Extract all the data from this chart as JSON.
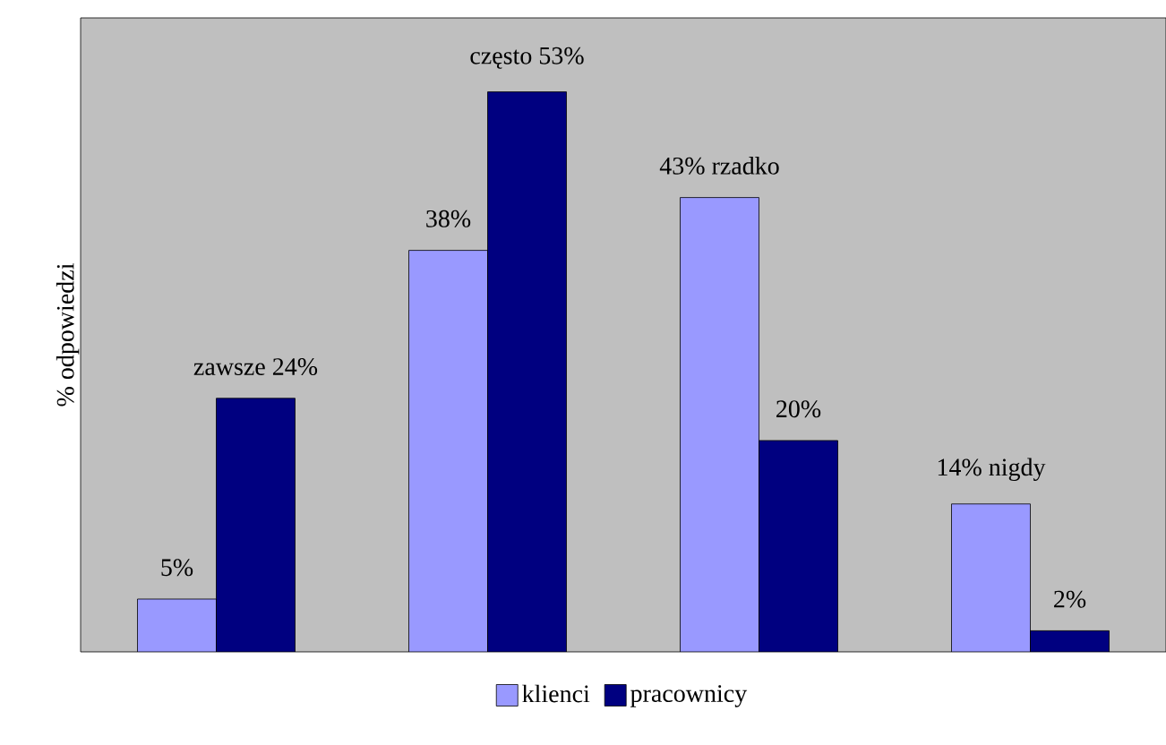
{
  "chart_data": {
    "type": "bar",
    "ylabel": "% odpowiedzi",
    "categories": [
      null,
      null,
      null,
      null
    ],
    "series": [
      {
        "name": "klienci",
        "color": "#9999ff",
        "values": [
          5,
          38,
          43,
          14
        ],
        "value_labels": [
          "5%",
          "38%",
          "43% rzadko",
          "14% nigdy"
        ]
      },
      {
        "name": "pracownicy",
        "color": "#000080",
        "values": [
          24,
          53,
          20,
          2
        ],
        "value_labels": [
          "zawsze 24%",
          "często 53%",
          "20%",
          "2%"
        ]
      }
    ],
    "ylim": [
      0,
      60
    ],
    "tick_labels": false,
    "legend": "bottom"
  }
}
